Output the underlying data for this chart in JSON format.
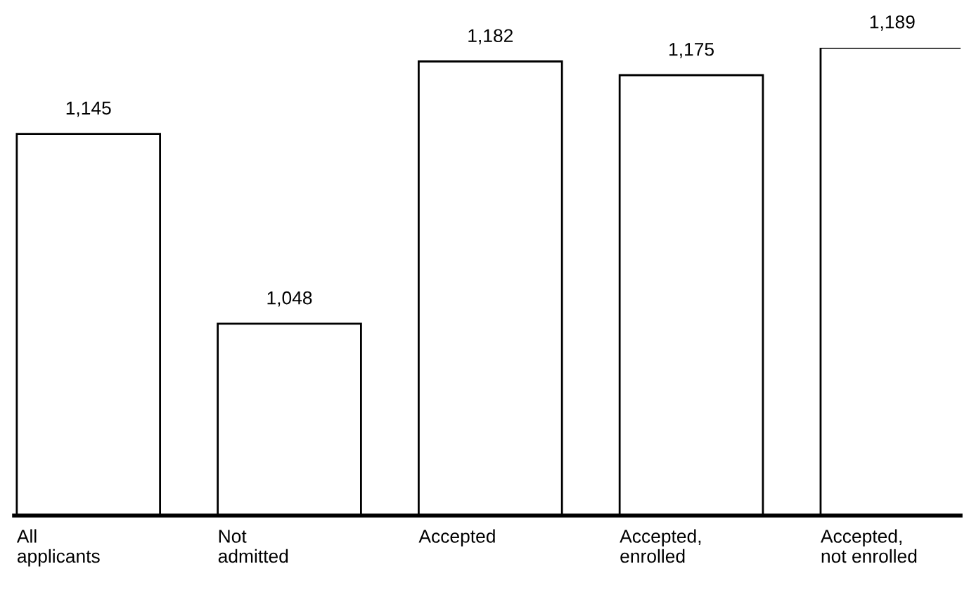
{
  "chart_data": {
    "type": "bar",
    "categories": [
      "All\napplicants",
      "Not\nadmitted",
      "Accepted",
      "Accepted,\nenrolled",
      "Accepted,\nnot enrolled"
    ],
    "values": [
      1145,
      1048,
      1182,
      1175,
      1189
    ],
    "value_labels": [
      "1,145",
      "1,048",
      "1,182",
      "1,175",
      "1,189"
    ],
    "color": "#ffffff",
    "ylim": [
      950,
      1189
    ],
    "tick_labels": "x",
    "grid": false,
    "legend": false
  }
}
